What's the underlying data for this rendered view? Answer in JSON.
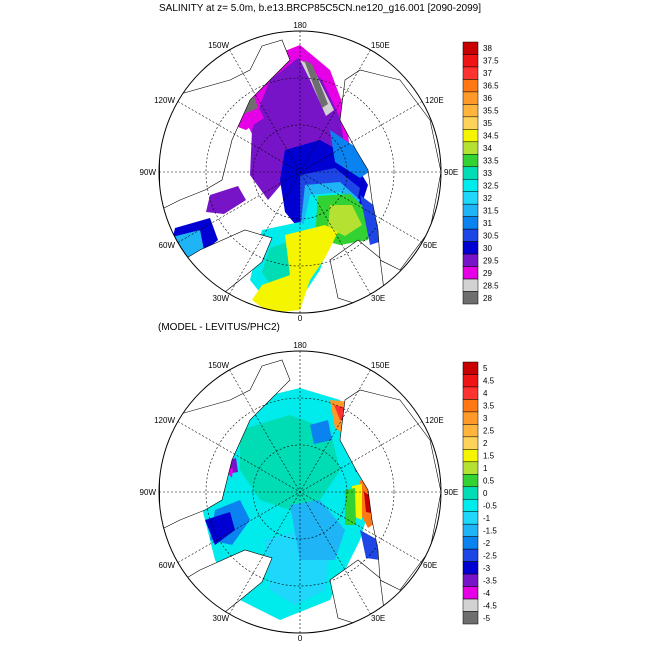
{
  "top_panel": {
    "title": "SALINITY at z=   5.0m, b.e13.BRCP85C5CN.ne120_g16.001 [2090-2099]",
    "lon_labels": {
      "lon_180": "180",
      "lon_150e": "150E",
      "lon_120e": "120E",
      "lon_90e": "90E",
      "lon_60e": "60E",
      "lon_30e": "30E",
      "lon_0": "0",
      "lon_30w": "30W",
      "lon_60w": "60W",
      "lon_90w": "90W",
      "lon_120w": "120W",
      "lon_150w": "150W"
    },
    "colorbar": {
      "labels": [
        "38",
        "37.5",
        "37",
        "36.5",
        "36",
        "35.5",
        "35",
        "34.5",
        "34",
        "33.5",
        "33",
        "32.5",
        "32",
        "31.5",
        "31",
        "30.5",
        "30",
        "29.5",
        "29",
        "28.5",
        "28"
      ],
      "colors": [
        "#c80000",
        "#f01414",
        "#ff3232",
        "#ff7814",
        "#ff9a28",
        "#ffb43c",
        "#ffd25a",
        "#f5f500",
        "#b4e132",
        "#32d232",
        "#00dcb4",
        "#00ebeb",
        "#1ed7fa",
        "#1eb4f5",
        "#0a82f0",
        "#1e46e6",
        "#0000d2",
        "#7814c8",
        "#e600e6",
        "#d2d2d2",
        "#6e6e6e"
      ]
    }
  },
  "bottom_panel": {
    "title": "(MODEL - LEVITUS/PHC2)",
    "lon_labels": {
      "lon_180": "180",
      "lon_150e": "150E",
      "lon_120e": "120E",
      "lon_90e": "90E",
      "lon_60e": "60E",
      "lon_30e": "30E",
      "lon_0": "0",
      "lon_30w": "30W",
      "lon_60w": "60W",
      "lon_90w": "90W",
      "lon_120w": "120W",
      "lon_150w": "150W"
    },
    "colorbar": {
      "labels": [
        "5",
        "4.5",
        "4",
        "3.5",
        "3",
        "2.5",
        "2",
        "1.5",
        "1",
        "0.5",
        "0",
        "-0.5",
        "-1",
        "-1.5",
        "-2",
        "-2.5",
        "-3",
        "-3.5",
        "-4",
        "-4.5",
        "-5"
      ],
      "colors": [
        "#c80000",
        "#f01414",
        "#ff3232",
        "#ff7814",
        "#ff9a28",
        "#ffb43c",
        "#ffd25a",
        "#f5f500",
        "#b4e132",
        "#32d232",
        "#00dcb4",
        "#00ebeb",
        "#1ed7fa",
        "#1eb4f5",
        "#0a82f0",
        "#1e46e6",
        "#0000d2",
        "#7814c8",
        "#e600e6",
        "#d2d2d2",
        "#6e6e6e"
      ]
    }
  }
}
